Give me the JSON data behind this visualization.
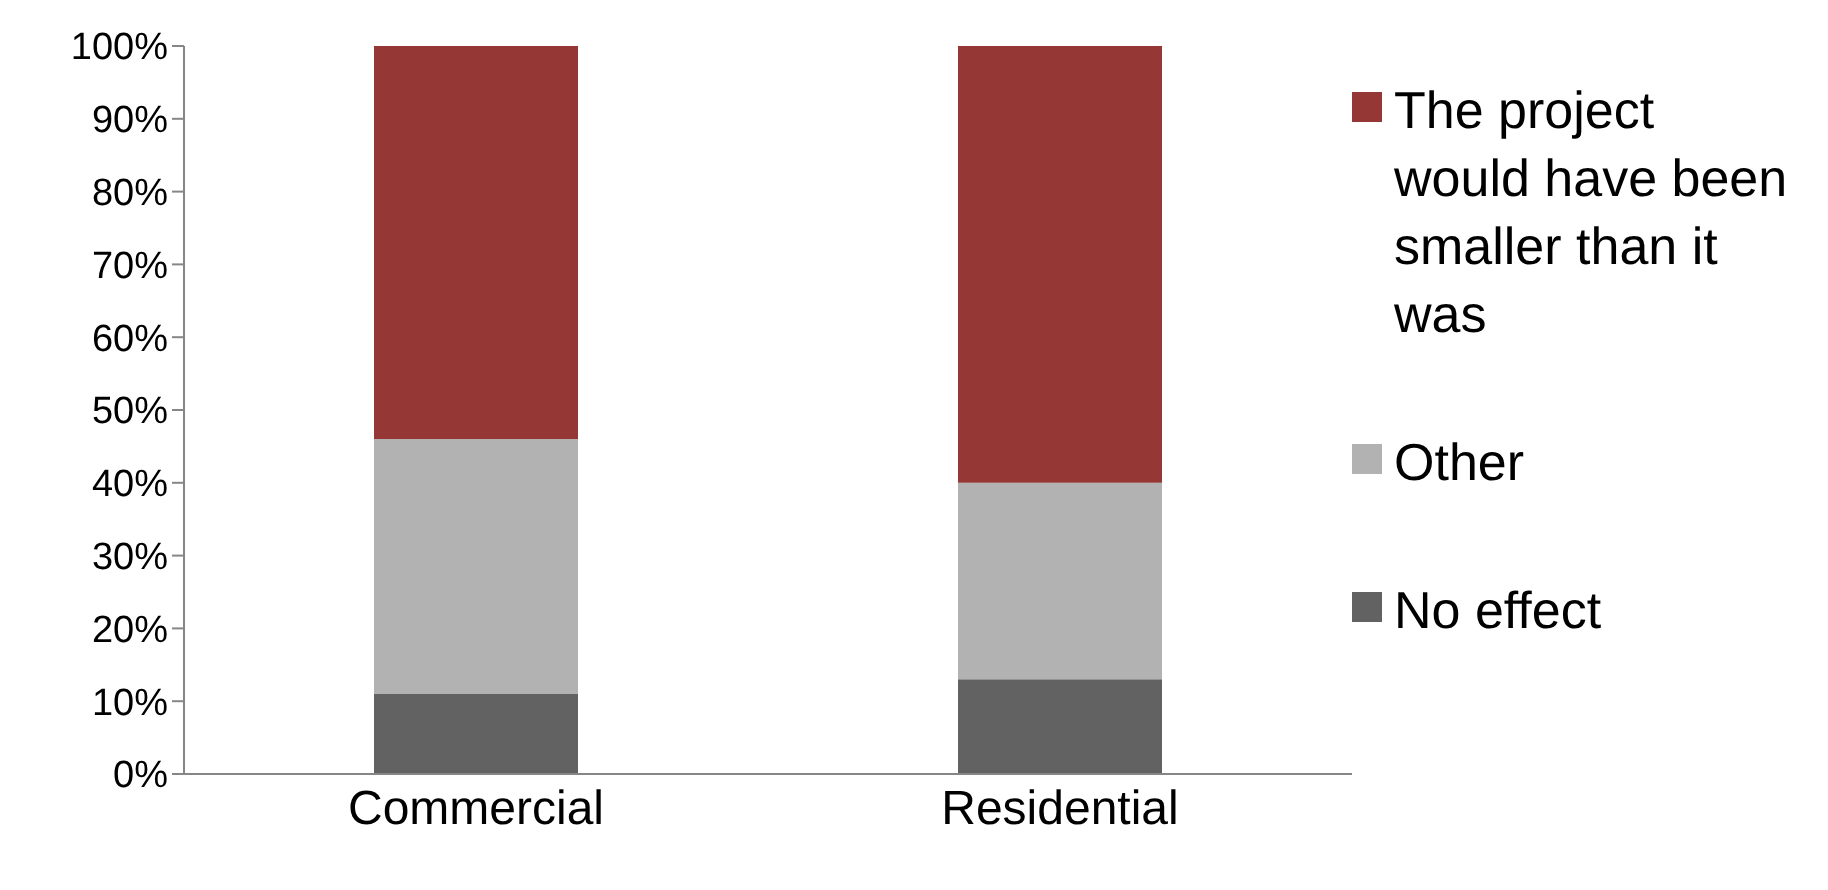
{
  "chart_data": {
    "type": "bar",
    "stacked": true,
    "categories": [
      "Commercial",
      "Residential"
    ],
    "series": [
      {
        "name": "No effect",
        "color": "#626262",
        "values": [
          11,
          13
        ]
      },
      {
        "name": "Other",
        "color": "#b2b2b2",
        "values": [
          35,
          27
        ]
      },
      {
        "name": "The project would have been smaller than it was",
        "color": "#953735",
        "values": [
          54,
          60
        ]
      }
    ],
    "ylim": [
      0,
      100
    ],
    "yticks": [
      {
        "value": 0,
        "label": "0%"
      },
      {
        "value": 10,
        "label": "10%"
      },
      {
        "value": 20,
        "label": "20%"
      },
      {
        "value": 30,
        "label": "30%"
      },
      {
        "value": 40,
        "label": "40%"
      },
      {
        "value": 50,
        "label": "50%"
      },
      {
        "value": 60,
        "label": "60%"
      },
      {
        "value": 70,
        "label": "70%"
      },
      {
        "value": 80,
        "label": "80%"
      },
      {
        "value": 90,
        "label": "90%"
      },
      {
        "value": 100,
        "label": "100%"
      }
    ],
    "grid": false,
    "legend": "right"
  }
}
